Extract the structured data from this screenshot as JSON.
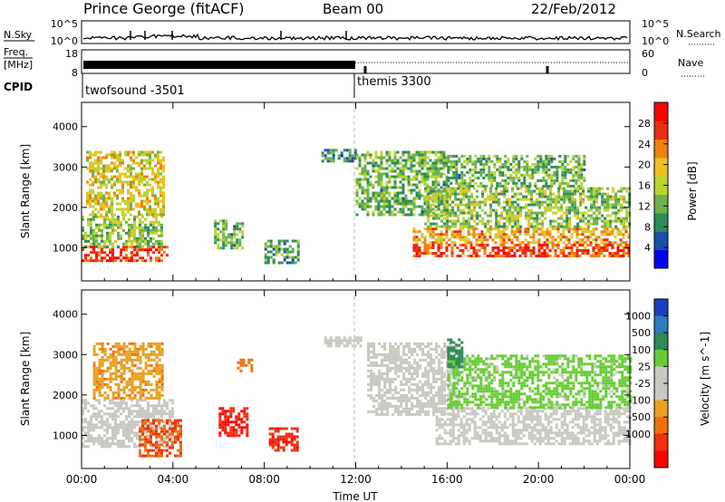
{
  "header": {
    "station": "Prince George (fitACF)",
    "beam": "Beam 00",
    "date": "22/Feb/2012"
  },
  "nsky_panel": {
    "left_label": "N.Sky",
    "left_ticks": [
      "10^5",
      "10^0"
    ],
    "right_ticks": [
      "10^5",
      "10^0"
    ],
    "right_label": "N.Search"
  },
  "freq_panel": {
    "left_label_1": "Freq.",
    "left_label_2": "[MHz]",
    "left_ticks": [
      "18",
      "8"
    ],
    "right_ticks": [
      "60",
      "0"
    ],
    "right_label": "Nave"
  },
  "cpid": {
    "label": "CPID",
    "modes": [
      {
        "name": "twofsound -3501",
        "start_hour": 0
      },
      {
        "name": "themis 3300",
        "start_hour": 12
      }
    ]
  },
  "colors": {
    "power_scale": [
      "#0000ff",
      "#1a4fa8",
      "#2e8b57",
      "#6ab04c",
      "#b8d430",
      "#f0c020",
      "#f08010",
      "#e83010",
      "#ff0000"
    ],
    "velocity_scale": [
      "#1d3fbf",
      "#2e7cc0",
      "#2e8b57",
      "#66cc33",
      "#c8c8c0",
      "#c8c8c0",
      "#e8a020",
      "#f07010",
      "#f03010",
      "#ff0000"
    ],
    "ground_scatter": "#c8c8c0"
  },
  "chart_data": [
    {
      "type": "heatmap",
      "name": "power",
      "xlabel": "",
      "ylabel": "Slant Range [km]",
      "xlim": [
        0,
        24
      ],
      "ylim": [
        180,
        4600
      ],
      "yticks": [
        {
          "value": 1000,
          "label": "1000"
        },
        {
          "value": 2000,
          "label": "2000"
        },
        {
          "value": 3000,
          "label": "3000"
        },
        {
          "value": 4000,
          "label": "4000"
        }
      ],
      "colorbar": {
        "label": "Power [dB]",
        "ticks": [
          "4",
          "8",
          "12",
          "16",
          "20",
          "24",
          "28"
        ],
        "range": [
          0,
          32
        ]
      },
      "regions": [
        {
          "t0": 0.0,
          "t1": 3.8,
          "r0": 700,
          "r1": 1050,
          "level": 27
        },
        {
          "t0": 0.0,
          "t1": 3.5,
          "r0": 1050,
          "r1": 1800,
          "level": 14
        },
        {
          "t0": 0.2,
          "t1": 3.6,
          "r0": 1800,
          "r1": 3400,
          "level": 18
        },
        {
          "t0": 5.8,
          "t1": 7.0,
          "r0": 1000,
          "r1": 1700,
          "level": 12
        },
        {
          "t0": 8.0,
          "t1": 9.5,
          "r0": 600,
          "r1": 1200,
          "level": 10
        },
        {
          "t0": 10.5,
          "t1": 12.0,
          "r0": 3150,
          "r1": 3450,
          "level": 8
        },
        {
          "t0": 12.0,
          "t1": 16.0,
          "r0": 1800,
          "r1": 3400,
          "level": 12
        },
        {
          "t0": 14.5,
          "t1": 24.0,
          "r0": 780,
          "r1": 1100,
          "level": 26
        },
        {
          "t0": 14.5,
          "t1": 24.0,
          "r0": 1100,
          "r1": 1500,
          "level": 21
        },
        {
          "t0": 15.0,
          "t1": 24.0,
          "r0": 1500,
          "r1": 2500,
          "level": 14
        },
        {
          "t0": 16.0,
          "t1": 22.0,
          "r0": 2500,
          "r1": 3300,
          "level": 12
        }
      ]
    },
    {
      "type": "heatmap",
      "name": "velocity",
      "xlabel": "Time UT",
      "ylabel": "Slant Range [km]",
      "xlim": [
        0,
        24
      ],
      "ylim": [
        180,
        4600
      ],
      "xticks": [
        "00:00",
        "04:00",
        "08:00",
        "12:00",
        "16:00",
        "20:00",
        "00:00"
      ],
      "yticks": [
        {
          "value": 1000,
          "label": "1000"
        },
        {
          "value": 2000,
          "label": "2000"
        },
        {
          "value": 3000,
          "label": "3000"
        },
        {
          "value": 4000,
          "label": "4000"
        }
      ],
      "colorbar": {
        "label": "Velocity [m s^-1]",
        "ticks": [
          "1000",
          "500",
          "100",
          "25",
          "-25",
          "-100",
          "-500",
          "-1000"
        ]
      },
      "regions": [
        {
          "t0": 0.0,
          "t1": 4.0,
          "r0": 750,
          "r1": 1900,
          "kind": "ground"
        },
        {
          "t0": 2.5,
          "t1": 4.3,
          "r0": 500,
          "r1": 1400,
          "v": -300
        },
        {
          "t0": 0.5,
          "t1": 3.5,
          "r0": 1900,
          "r1": 3300,
          "v": -80
        },
        {
          "t0": 6.0,
          "t1": 7.2,
          "r0": 1000,
          "r1": 1700,
          "v": -700
        },
        {
          "t0": 8.2,
          "t1": 9.4,
          "r0": 600,
          "r1": 1200,
          "v": -600
        },
        {
          "t0": 6.8,
          "t1": 7.4,
          "r0": 2600,
          "r1": 2900,
          "v": -200
        },
        {
          "t0": 10.5,
          "t1": 12.2,
          "r0": 3200,
          "r1": 3450,
          "kind": "ground"
        },
        {
          "t0": 12.5,
          "t1": 16.5,
          "r0": 1500,
          "r1": 3300,
          "kind": "ground"
        },
        {
          "t0": 15.5,
          "t1": 24.0,
          "r0": 800,
          "r1": 1700,
          "kind": "ground"
        },
        {
          "t0": 16.0,
          "t1": 24.0,
          "r0": 1700,
          "r1": 3000,
          "v": 50
        },
        {
          "t0": 16.0,
          "t1": 16.6,
          "r0": 2700,
          "r1": 3400,
          "v": 200
        }
      ]
    }
  ]
}
